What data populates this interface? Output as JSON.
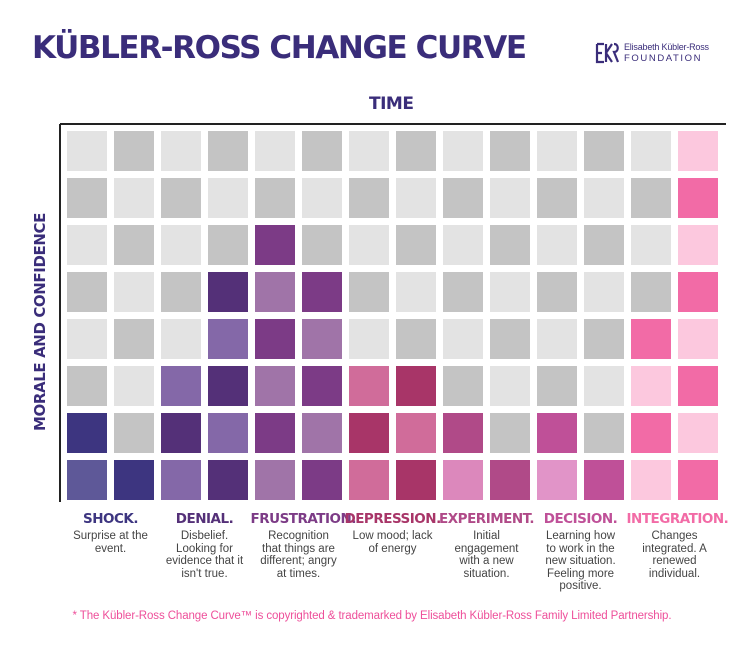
{
  "title": "KÜBLER-ROSS CHANGE CURVE",
  "logo": {
    "line1": "Elisabeth Kübler-Ross",
    "line2": "FOUNDATION"
  },
  "footnote": "* The Kübler-Ross Change Curve™ is copyrighted & trademarked by Elisabeth Kübler-Ross Family Limited Partnership.",
  "chart_data": {
    "type": "heatmap",
    "xlabel": "TIME",
    "ylabel": "MORALE AND CONFIDENCE",
    "rows": 8,
    "columns": 14,
    "levels": [
      2,
      1,
      3,
      5,
      6,
      5,
      3,
      3,
      2,
      1,
      2,
      1,
      4,
      8
    ],
    "stages": [
      {
        "name": "SHOCK.",
        "desc": "Surprise at the event.",
        "color": "#3d3580",
        "light": "#5e5898"
      },
      {
        "name": "DENIAL.",
        "desc": "Disbelief. Looking for evidence that it isn't true.",
        "color": "#543078",
        "light": "#8468a8"
      },
      {
        "name": "FRUSTRATION.",
        "desc": "Recognition that things are different; angry at times.",
        "color": "#7c3b86",
        "light": "#a074a8"
      },
      {
        "name": "DEPRESSION.",
        "desc": "Low mood; lack of energy",
        "color": "#a83568",
        "light": "#d06c9a"
      },
      {
        "name": "EXPERIMENT.",
        "desc": "Initial engagement with a new situation.",
        "color": "#b04a88",
        "light": "#dc88bc"
      },
      {
        "name": "DECISION.",
        "desc": "Learning how to work in the new situation. Feeling more positive.",
        "color": "#bf5098",
        "light": "#e194c8"
      },
      {
        "name": "INTEGRATION.",
        "desc": "Changes integrated. A renewed individual.",
        "color": "#f26ba6",
        "light": "#fcc8de"
      }
    ],
    "background_colors": {
      "light": "#e3e3e3",
      "dark": "#c4c4c4"
    },
    "axis_color": "#222222"
  }
}
